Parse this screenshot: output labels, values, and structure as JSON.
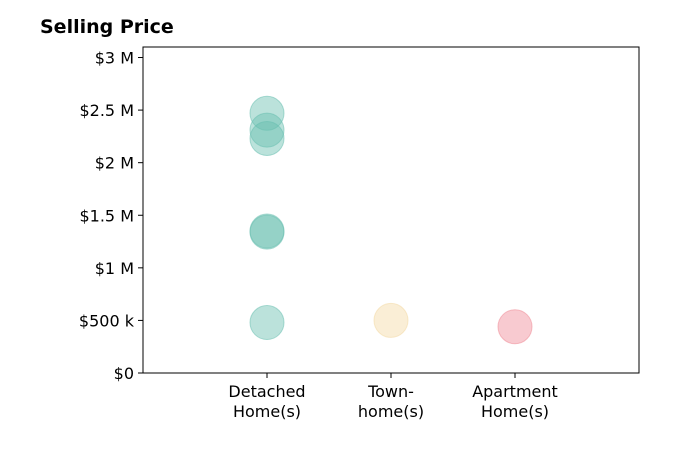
{
  "chart_data": {
    "type": "scatter",
    "title": "Selling Price",
    "xlabel": "",
    "ylabel": "",
    "categories": [
      {
        "lines": [
          "Detached",
          "Home(s)"
        ]
      },
      {
        "lines": [
          "Town-",
          "home(s)"
        ]
      },
      {
        "lines": [
          "Apartment",
          "Home(s)"
        ]
      }
    ],
    "xlim": [
      0,
      4
    ],
    "ylim": [
      0,
      3100000
    ],
    "y_ticks": [
      {
        "value": 0,
        "label": "$0"
      },
      {
        "value": 500000,
        "label": "$500 k"
      },
      {
        "value": 1000000,
        "label": "$1 M"
      },
      {
        "value": 1500000,
        "label": "$1.5 M"
      },
      {
        "value": 2000000,
        "label": "$2 M"
      },
      {
        "value": 2500000,
        "label": "$2.5 M"
      },
      {
        "value": 3000000,
        "label": "$3 M"
      }
    ],
    "grid": false,
    "points": [
      {
        "category": 0,
        "value": 2470000,
        "color": "#69bfb0"
      },
      {
        "category": 0,
        "value": 2310000,
        "color": "#69bfb0"
      },
      {
        "category": 0,
        "value": 2230000,
        "color": "#69bfb0"
      },
      {
        "category": 0,
        "value": 1350000,
        "color": "#69bfb0"
      },
      {
        "category": 0,
        "value": 1340000,
        "color": "#69bfb0"
      },
      {
        "category": 0,
        "value": 480000,
        "color": "#69bfb0"
      },
      {
        "category": 1,
        "value": 500000,
        "color": "#f3d9a4"
      },
      {
        "category": 2,
        "value": 440000,
        "color": "#ef8a96"
      }
    ]
  }
}
